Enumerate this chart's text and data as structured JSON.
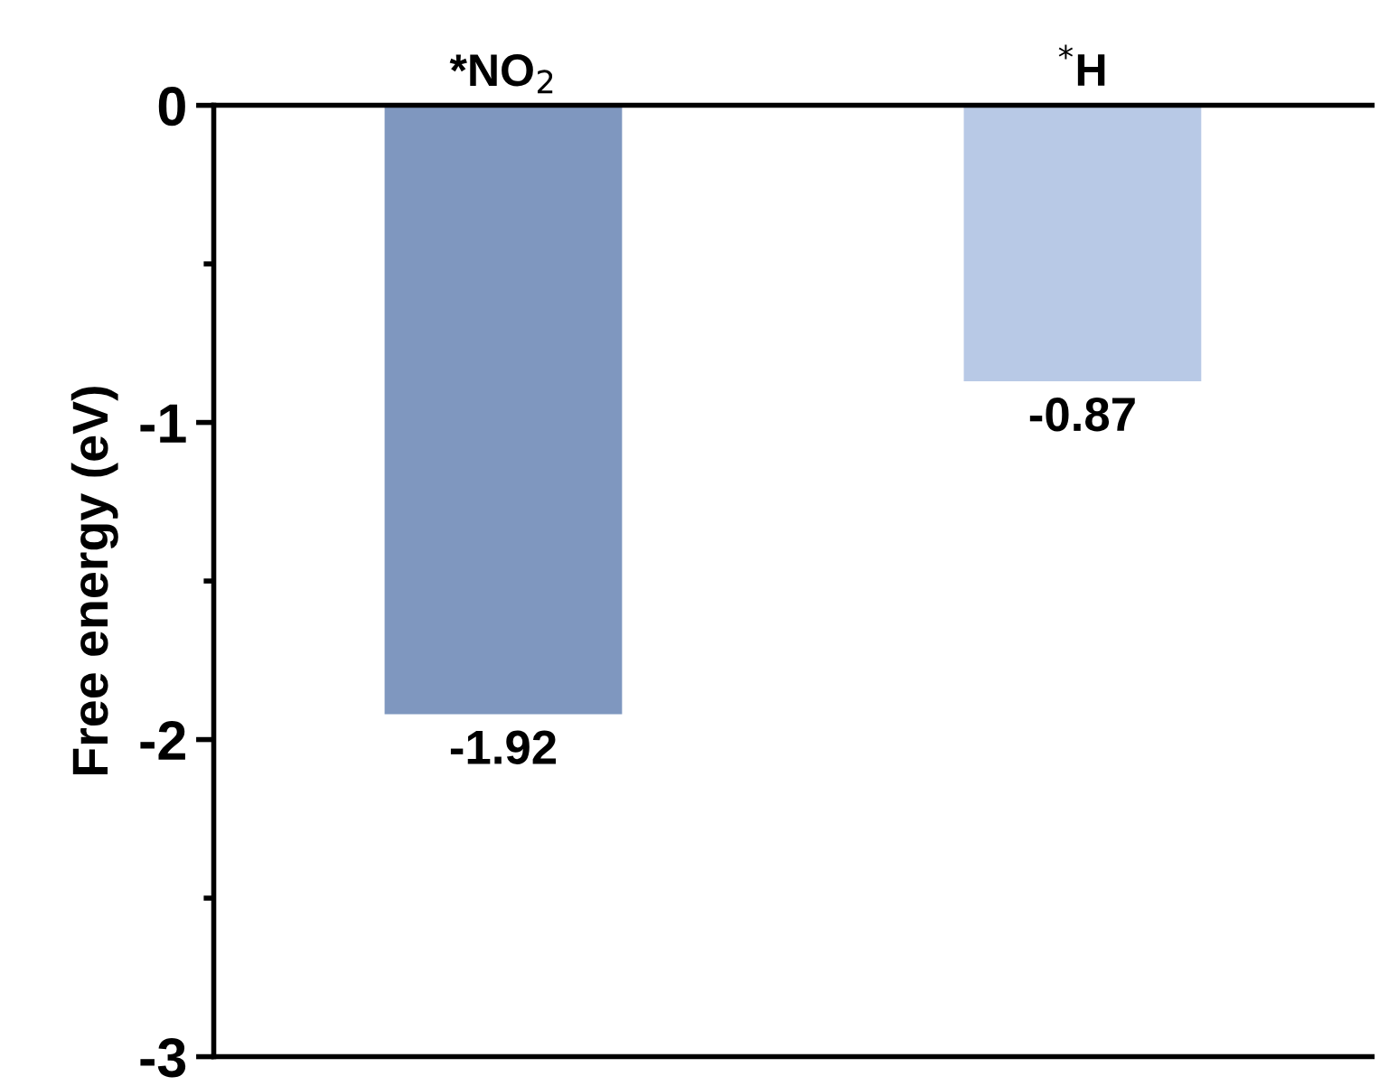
{
  "chart_data": {
    "type": "bar",
    "ylabel": "Free energy (eV)",
    "categories": [
      "*NO$_{2}$",
      "$^{*}$H"
    ],
    "values": [
      -1.92,
      -0.87
    ],
    "colors": [
      "#7f97bf",
      "#b8c9e6"
    ],
    "ylim": [
      -3,
      0
    ],
    "yticks": [
      0,
      -1,
      -2,
      -3
    ],
    "data_labels": true,
    "grid": false,
    "legend": false
  }
}
